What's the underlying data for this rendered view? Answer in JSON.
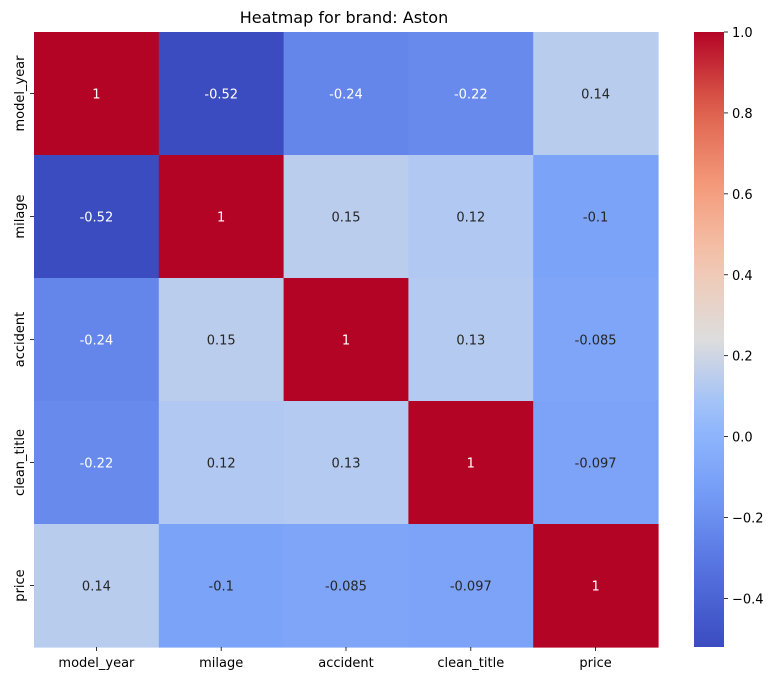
{
  "chart_data": {
    "type": "heatmap",
    "title": "Heatmap for brand: Aston",
    "xlabel": "",
    "ylabel": "",
    "x_categories": [
      "model_year",
      "milage",
      "accident",
      "clean_title",
      "price"
    ],
    "y_categories": [
      "model_year",
      "milage",
      "accident",
      "clean_title",
      "price"
    ],
    "values": [
      [
        1,
        -0.52,
        -0.24,
        -0.22,
        0.14
      ],
      [
        -0.52,
        1,
        0.15,
        0.12,
        -0.1
      ],
      [
        -0.24,
        0.15,
        1,
        0.13,
        -0.085
      ],
      [
        -0.22,
        0.12,
        0.13,
        1,
        -0.097
      ],
      [
        0.14,
        -0.1,
        -0.085,
        -0.097,
        1
      ]
    ],
    "annotations": [
      [
        "1",
        "-0.52",
        "-0.24",
        "-0.22",
        "0.14"
      ],
      [
        "-0.52",
        "1",
        "0.15",
        "0.12",
        "-0.1"
      ],
      [
        "-0.24",
        "0.15",
        "1",
        "0.13",
        "-0.085"
      ],
      [
        "-0.22",
        "0.12",
        "0.13",
        "1",
        "-0.097"
      ],
      [
        "0.14",
        "-0.1",
        "-0.085",
        "-0.097",
        "1"
      ]
    ],
    "colormap": "coolwarm",
    "colorbar": {
      "vmin": -0.52,
      "vmax": 1,
      "ticks": [
        -0.4,
        -0.2,
        0.0,
        0.2,
        0.4,
        0.6,
        0.8,
        1.0
      ],
      "tick_labels": [
        "−0.4",
        "−0.2",
        "0.0",
        "0.2",
        "0.4",
        "0.6",
        "0.8",
        "1.0"
      ]
    },
    "grid": false
  }
}
